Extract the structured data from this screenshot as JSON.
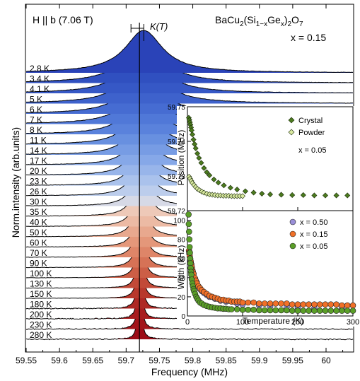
{
  "chart_data": [
    {
      "type": "line",
      "subtype": "stacked-spectra",
      "annotation_field": "H || b (7.06 T)",
      "annotation_compound": "BaCu2(Si1−xGex)2O7",
      "annotation_x": "x = 0.15",
      "shift_label": "K(T)",
      "xlabel": "Frequency (MHz)",
      "ylabel": "Norm.intensity (arb.units)",
      "xlim": [
        59.55,
        60.03
      ],
      "xticks": [
        "59.55",
        "59.6",
        "59.65",
        "59.7",
        "59.75",
        "59.8",
        "59.85",
        "59.9",
        "59.95",
        "60"
      ],
      "reference_line_x": 59.72,
      "series": [
        {
          "name": "2.8 K",
          "color": "#2a43b8",
          "center_mhz": 59.7265,
          "fwhm_mhz": 0.068
        },
        {
          "name": "3.4 K",
          "color": "#3050c0",
          "center_mhz": 59.7262,
          "fwhm_mhz": 0.067
        },
        {
          "name": "4.1 K",
          "color": "#3658c6",
          "center_mhz": 59.726,
          "fwhm_mhz": 0.066
        },
        {
          "name": "5 K",
          "color": "#3e62cc",
          "center_mhz": 59.7258,
          "fwhm_mhz": 0.064
        },
        {
          "name": "6 K",
          "color": "#466cd2",
          "center_mhz": 59.7255,
          "fwhm_mhz": 0.06
        },
        {
          "name": "7 K",
          "color": "#5078d8",
          "center_mhz": 59.7252,
          "fwhm_mhz": 0.056
        },
        {
          "name": "8 K",
          "color": "#5a82dc",
          "center_mhz": 59.725,
          "fwhm_mhz": 0.052
        },
        {
          "name": "11 K",
          "color": "#6890e0",
          "center_mhz": 59.7245,
          "fwhm_mhz": 0.046
        },
        {
          "name": "14 K",
          "color": "#779ce4",
          "center_mhz": 59.724,
          "fwhm_mhz": 0.041
        },
        {
          "name": "17 K",
          "color": "#86a8e8",
          "center_mhz": 59.7236,
          "fwhm_mhz": 0.037
        },
        {
          "name": "20 K",
          "color": "#98b5ea",
          "center_mhz": 59.7233,
          "fwhm_mhz": 0.034
        },
        {
          "name": "23 K",
          "color": "#aac2ec",
          "center_mhz": 59.723,
          "fwhm_mhz": 0.031
        },
        {
          "name": "26 K",
          "color": "#bccdec",
          "center_mhz": 59.7228,
          "fwhm_mhz": 0.029
        },
        {
          "name": "30 K",
          "color": "#d6d9e6",
          "center_mhz": 59.7226,
          "fwhm_mhz": 0.027
        },
        {
          "name": "35 K",
          "color": "#eec9b8",
          "center_mhz": 59.7224,
          "fwhm_mhz": 0.025
        },
        {
          "name": "40 K",
          "color": "#ecbaa4",
          "center_mhz": 59.7222,
          "fwhm_mhz": 0.023
        },
        {
          "name": "50 K",
          "color": "#e8a88e",
          "center_mhz": 59.722,
          "fwhm_mhz": 0.021
        },
        {
          "name": "60 K",
          "color": "#e4977a",
          "center_mhz": 59.7218,
          "fwhm_mhz": 0.019
        },
        {
          "name": "70 K",
          "color": "#de8568",
          "center_mhz": 59.7216,
          "fwhm_mhz": 0.017
        },
        {
          "name": "90 K",
          "color": "#d67256",
          "center_mhz": 59.7214,
          "fwhm_mhz": 0.015
        },
        {
          "name": "100 K",
          "color": "#cc5e46",
          "center_mhz": 59.7212,
          "fwhm_mhz": 0.013
        },
        {
          "name": "130 K",
          "color": "#c24a38",
          "center_mhz": 59.721,
          "fwhm_mhz": 0.011
        },
        {
          "name": "150 K",
          "color": "#b8382c",
          "center_mhz": 59.7208,
          "fwhm_mhz": 0.01
        },
        {
          "name": "180 K",
          "color": "#ae2824",
          "center_mhz": 59.7207,
          "fwhm_mhz": 0.009
        },
        {
          "name": "200 K",
          "color": "#a81c1e",
          "center_mhz": 59.7206,
          "fwhm_mhz": 0.008
        },
        {
          "name": "230 K",
          "color": "#a2141a",
          "center_mhz": 59.7205,
          "fwhm_mhz": 0.0075
        },
        {
          "name": "280 K",
          "color": "#9c0c16",
          "center_mhz": 59.7204,
          "fwhm_mhz": 0.007
        }
      ]
    },
    {
      "type": "scatter",
      "panel": "inset-top",
      "ylabel": "Position (MHz)",
      "ylim": [
        59.72,
        59.75
      ],
      "yticks": [
        "59.72",
        "59.73",
        "59.74",
        "59.75"
      ],
      "xlim": [
        0,
        300
      ],
      "legend_note": "x = 0.05",
      "legend_position": "top-right",
      "series": [
        {
          "name": "Crystal",
          "marker": "diamond",
          "color": "#4b7a1e",
          "x": [
            2.5,
            3.5,
            4.5,
            5.5,
            6.5,
            7.5,
            9,
            11,
            13,
            15,
            18,
            21,
            25,
            30,
            35,
            40,
            48,
            56,
            66,
            78,
            90,
            105,
            120,
            135,
            150,
            170,
            190,
            210,
            230,
            250,
            270,
            290
          ],
          "y": [
            59.7468,
            59.7462,
            59.7455,
            59.7448,
            59.744,
            59.7432,
            59.742,
            59.7405,
            59.7392,
            59.738,
            59.7365,
            59.7352,
            59.7338,
            59.7323,
            59.7311,
            59.7302,
            59.729,
            59.7281,
            59.7273,
            59.7266,
            59.7261,
            59.7256,
            59.7252,
            59.7249,
            59.7247,
            59.7246,
            59.7245,
            59.7245,
            59.7244,
            59.7244,
            59.7244,
            59.7244
          ]
        },
        {
          "name": "Powder",
          "marker": "diamond",
          "color": "#d9e9a0",
          "x": [
            3,
            5,
            7,
            9,
            12,
            15,
            18,
            22,
            26,
            30,
            35,
            40,
            45,
            50,
            55,
            60,
            65,
            70,
            75,
            80,
            85,
            90,
            95,
            100
          ],
          "y": [
            59.7298,
            59.7292,
            59.7286,
            59.728,
            59.7274,
            59.7268,
            59.7263,
            59.7259,
            59.7255,
            59.7252,
            59.7249,
            59.7247,
            59.7246,
            59.7245,
            59.7244,
            59.7244,
            59.7243,
            59.7243,
            59.7243,
            59.7242,
            59.7242,
            59.7242,
            59.7242,
            59.7242
          ]
        }
      ]
    },
    {
      "type": "scatter",
      "panel": "inset-bottom",
      "xlabel": "Temperature (K)",
      "ylabel": "Width (kHz)",
      "xlim": [
        0,
        300
      ],
      "ylim": [
        0,
        110
      ],
      "xticks": [
        "0",
        "100",
        "200",
        "300"
      ],
      "yticks": [
        "0",
        "20",
        "40",
        "60",
        "80",
        "100"
      ],
      "legend_position": "top-right",
      "series": [
        {
          "name": "x = 0.50",
          "marker": "circle",
          "color": "#9a8fd8",
          "x": [
            2.8,
            3.4,
            4.1,
            5,
            6,
            7,
            8,
            11,
            14,
            17,
            20,
            23,
            26,
            30,
            35,
            40,
            50,
            60,
            70,
            90,
            100,
            130,
            150,
            180,
            200,
            230,
            280
          ],
          "y": [
            68,
            65,
            62,
            59,
            56,
            53,
            50,
            44,
            39,
            35,
            31,
            28,
            26,
            24,
            22,
            20,
            18,
            16,
            15,
            13,
            12,
            11,
            10,
            9,
            9,
            8,
            8
          ]
        },
        {
          "name": "x = 0.15",
          "marker": "circle",
          "color": "#f07028",
          "x": [
            2.8,
            3.4,
            4.1,
            5,
            6,
            7,
            8,
            9,
            10,
            11,
            13,
            15,
            17,
            20,
            23,
            26,
            30,
            35,
            40,
            45,
            50,
            55,
            60,
            65,
            70,
            75,
            80,
            85,
            90,
            95,
            100,
            110,
            120,
            130,
            140,
            150,
            160,
            170,
            180,
            190,
            200,
            210,
            220,
            230,
            240,
            250,
            260,
            270,
            280,
            290,
            300
          ],
          "y": [
            68,
            66,
            63,
            60,
            57,
            54,
            51,
            48,
            46,
            44,
            40,
            37,
            34,
            31,
            29,
            27,
            25,
            23,
            21,
            20,
            19,
            18,
            17,
            17,
            16,
            16,
            15,
            15,
            15,
            15,
            14,
            14,
            14,
            13,
            13,
            13,
            13,
            13,
            13,
            12,
            12,
            12,
            12,
            12,
            12,
            12,
            12,
            12,
            11,
            11,
            11
          ]
        },
        {
          "name": "x = 0.05",
          "marker": "circle",
          "color": "#5a9e28",
          "x": [
            2,
            2.5,
            3,
            3.5,
            4,
            4.5,
            5,
            5.5,
            6,
            6.5,
            7,
            8,
            9,
            10,
            11,
            12,
            14,
            16,
            18,
            20,
            23,
            26,
            30,
            35,
            40,
            45,
            50,
            55,
            60,
            65,
            70,
            75,
            80,
            90,
            100,
            110,
            120,
            130,
            140,
            150,
            160,
            170,
            180,
            190,
            200,
            210,
            220,
            230,
            240,
            250,
            260,
            270,
            280,
            290,
            300
          ],
          "y": [
            106,
            96,
            88,
            80,
            72,
            66,
            60,
            55,
            50,
            46,
            43,
            38,
            34,
            31,
            28,
            26,
            23,
            20,
            18,
            16,
            14,
            13,
            11.5,
            10.5,
            9.5,
            9,
            8.5,
            8,
            8,
            7.5,
            7.5,
            7,
            7,
            7,
            6.5,
            6.5,
            6.5,
            6,
            6,
            6,
            6,
            6,
            6,
            5.5,
            5.5,
            5.5,
            5.5,
            5.5,
            5.5,
            5.5,
            5.5,
            5.5,
            5.5,
            5.5,
            5.5
          ]
        }
      ]
    }
  ]
}
